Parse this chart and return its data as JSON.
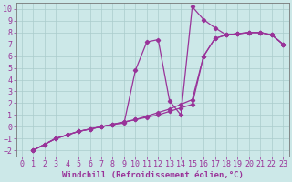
{
  "bg_color": "#cce8e8",
  "grid_color": "#aacccc",
  "line_color": "#993399",
  "xlim": [
    -0.5,
    23.5
  ],
  "ylim": [
    -2.5,
    10.5
  ],
  "xticks": [
    0,
    1,
    2,
    3,
    4,
    5,
    6,
    7,
    8,
    9,
    10,
    11,
    12,
    13,
    14,
    15,
    16,
    17,
    18,
    19,
    20,
    21,
    22,
    23
  ],
  "yticks": [
    -2,
    -1,
    0,
    1,
    2,
    3,
    4,
    5,
    6,
    7,
    8,
    9,
    10
  ],
  "line1_x": [
    1,
    2,
    3,
    4,
    5,
    6,
    7,
    8,
    9,
    10,
    11,
    12,
    13,
    14,
    15,
    16,
    17,
    18,
    19,
    20,
    21,
    22,
    23
  ],
  "line1_y": [
    -2.0,
    -1.5,
    -1.0,
    -0.7,
    -0.4,
    -0.2,
    0.0,
    0.2,
    0.4,
    0.6,
    0.9,
    1.2,
    1.5,
    1.9,
    2.3,
    6.0,
    7.5,
    7.8,
    7.9,
    8.0,
    8.0,
    7.8,
    7.0
  ],
  "line2_x": [
    1,
    2,
    3,
    4,
    5,
    6,
    7,
    8,
    9,
    10,
    11,
    12,
    13,
    14,
    15,
    16,
    17,
    18,
    19,
    20,
    21,
    22,
    23
  ],
  "line2_y": [
    -2.0,
    -1.5,
    -1.0,
    -0.7,
    -0.4,
    -0.2,
    0.0,
    0.2,
    0.3,
    4.8,
    7.2,
    7.4,
    2.2,
    1.0,
    10.2,
    9.1,
    8.4,
    7.8,
    7.9,
    8.0,
    8.0,
    7.8,
    7.0
  ],
  "line3_x": [
    1,
    2,
    3,
    4,
    5,
    6,
    7,
    8,
    9,
    10,
    11,
    12,
    13,
    14,
    15,
    16,
    17,
    18,
    19,
    20,
    21,
    22,
    23
  ],
  "line3_y": [
    -2.0,
    -1.5,
    -1.0,
    -0.7,
    -0.4,
    -0.2,
    0.0,
    0.2,
    0.4,
    0.6,
    0.8,
    1.0,
    1.3,
    1.6,
    1.9,
    6.0,
    7.5,
    7.8,
    7.9,
    8.0,
    8.0,
    7.8,
    7.0
  ],
  "xlabel": "Windchill (Refroidissement éolien,°C)",
  "xlabel_fontsize": 6.5,
  "tick_fontsize": 6.0,
  "marker_size": 2.2,
  "linewidth": 0.9
}
